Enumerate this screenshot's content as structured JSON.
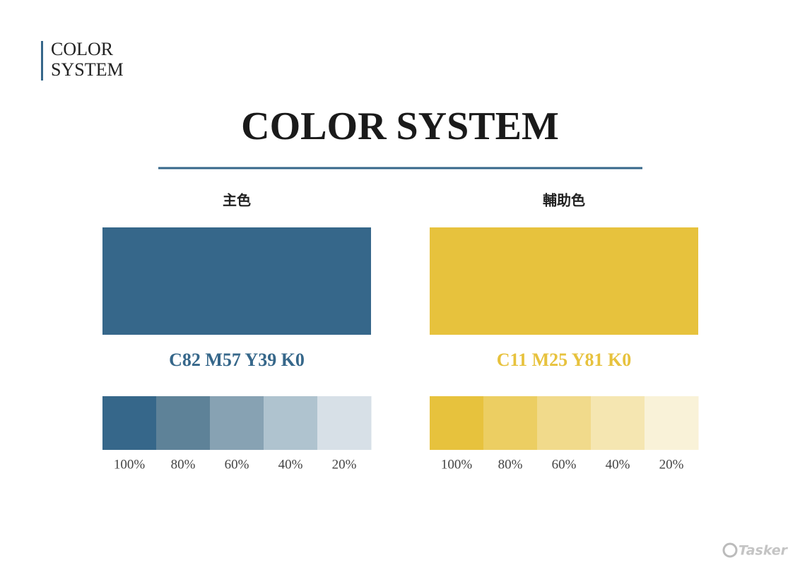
{
  "header": {
    "lines": [
      "COLOR",
      "SYSTEM"
    ]
  },
  "title": "COLOR SYSTEM",
  "palettes": [
    {
      "label": "主色",
      "color": "#36678a",
      "code": "C82 M57 Y39 K0",
      "shades": [
        {
          "color": "#36678a",
          "label": "100%"
        },
        {
          "color": "#5e8298",
          "label": "80%"
        },
        {
          "color": "#87a2b3",
          "label": "60%"
        },
        {
          "color": "#afc3cf",
          "label": "40%"
        },
        {
          "color": "#d7e0e7",
          "label": "20%"
        }
      ]
    },
    {
      "label": "輔助色",
      "color": "#e7c23d",
      "code": "C11 M25 Y81 K0",
      "shades": [
        {
          "color": "#e7c23d",
          "label": "100%"
        },
        {
          "color": "#ecce62",
          "label": "80%"
        },
        {
          "color": "#f1da8b",
          "label": "60%"
        },
        {
          "color": "#f5e6b1",
          "label": "40%"
        },
        {
          "color": "#f9f2d8",
          "label": "20%"
        }
      ]
    }
  ],
  "watermark": "Tasker"
}
